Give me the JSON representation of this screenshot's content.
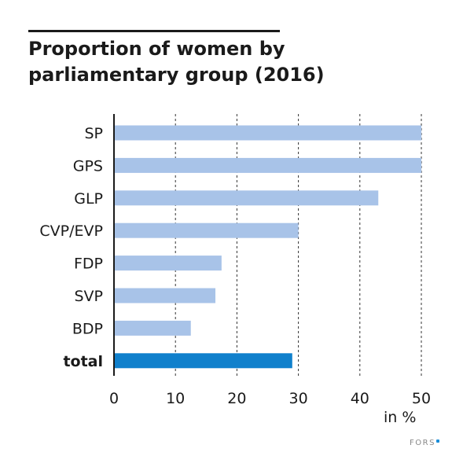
{
  "title_lines": [
    "Proportion of women by",
    "parliamentary group (2016)"
  ],
  "unit_label": "in %",
  "brand": "FORS",
  "colors": {
    "bar": "#a8c3e8",
    "bar_total": "#1080cc",
    "axis": "#1a1a1a",
    "grid": "#333333",
    "brand_dot": "#1a8dd8"
  },
  "chart_data": {
    "type": "bar",
    "orientation": "horizontal",
    "title": "Proportion of women by parliamentary group (2016)",
    "xlabel": "in %",
    "ylabel": "",
    "categories": [
      "SP",
      "GPS",
      "GLP",
      "CVP/EVP",
      "FDP",
      "SVP",
      "BDP",
      "total"
    ],
    "values": [
      50,
      50,
      43,
      30,
      17.5,
      16.5,
      12.5,
      29
    ],
    "highlight": [
      "total"
    ],
    "xlim": [
      0,
      50
    ],
    "xticks": [
      0,
      10,
      20,
      30,
      40,
      50
    ],
    "grid": "vertical dashed"
  }
}
